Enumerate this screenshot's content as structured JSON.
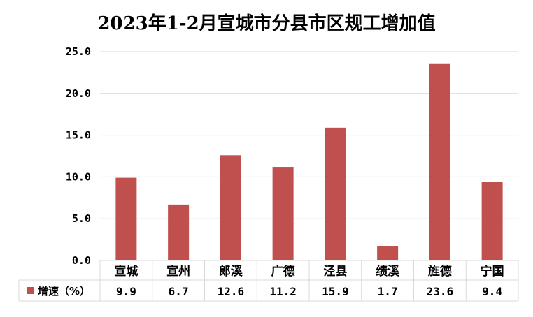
{
  "chart_data": {
    "type": "bar",
    "title": "2023年1-2月宣城市分县市区规工增加值",
    "categories": [
      "宣城",
      "宣州",
      "郎溪",
      "广德",
      "泾县",
      "绩溪",
      "旌德",
      "宁国"
    ],
    "series": [
      {
        "name": "增速（%）",
        "values": [
          9.9,
          6.7,
          12.6,
          11.2,
          15.9,
          1.7,
          23.6,
          9.4
        ]
      }
    ],
    "value_labels": [
      "9.9",
      "6.7",
      "12.6",
      "11.2",
      "15.9",
      "1.7",
      "23.6",
      "9.4"
    ],
    "y_ticks": [
      "0.0",
      "5.0",
      "10.0",
      "15.0",
      "20.0",
      "25.0"
    ],
    "ylim": [
      0,
      25
    ],
    "grid": true,
    "legend_position": "data-table",
    "bar_color": "#C0504D",
    "grid_color": "#D9D9D9"
  }
}
